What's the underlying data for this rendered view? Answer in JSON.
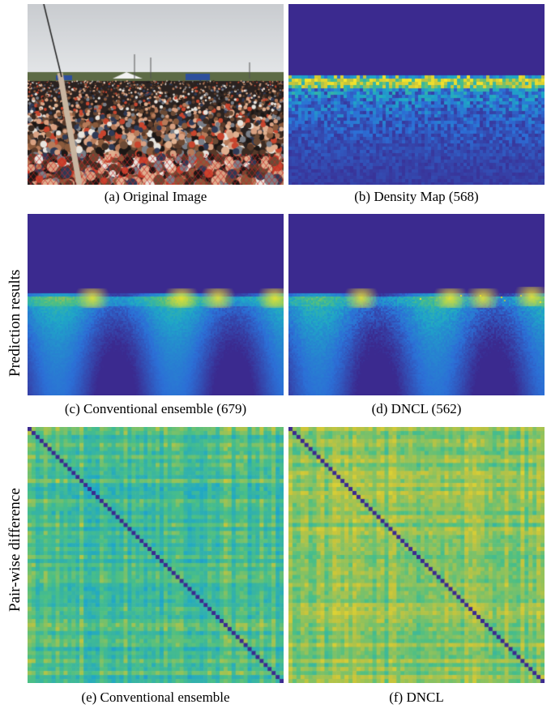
{
  "figure": {
    "row_labels": {
      "prediction": "Prediction results",
      "pairwise": "Pair-wise difference"
    },
    "panels": [
      {
        "id": "a",
        "caption": "(a) Original Image",
        "kind": "photo",
        "content": "crowd at outdoor festival"
      },
      {
        "id": "b",
        "caption": "(b) Density Map (568)",
        "kind": "density",
        "count": 568
      },
      {
        "id": "c",
        "caption": "(c) Conventional ensemble (679)",
        "kind": "density",
        "count": 679
      },
      {
        "id": "d",
        "caption": "(d) DNCL (562)",
        "kind": "density",
        "count": 562
      },
      {
        "id": "e",
        "caption": "(e) Conventional ensemble",
        "kind": "matrix"
      },
      {
        "id": "f",
        "caption": "(f) DNCL",
        "kind": "matrix"
      }
    ],
    "colors": {
      "colormap": [
        "#3b2a8f",
        "#2c6fd6",
        "#1fa7c7",
        "#4bbf86",
        "#c9c43a",
        "#f6e52a"
      ],
      "background": "#3a2f8e"
    }
  }
}
